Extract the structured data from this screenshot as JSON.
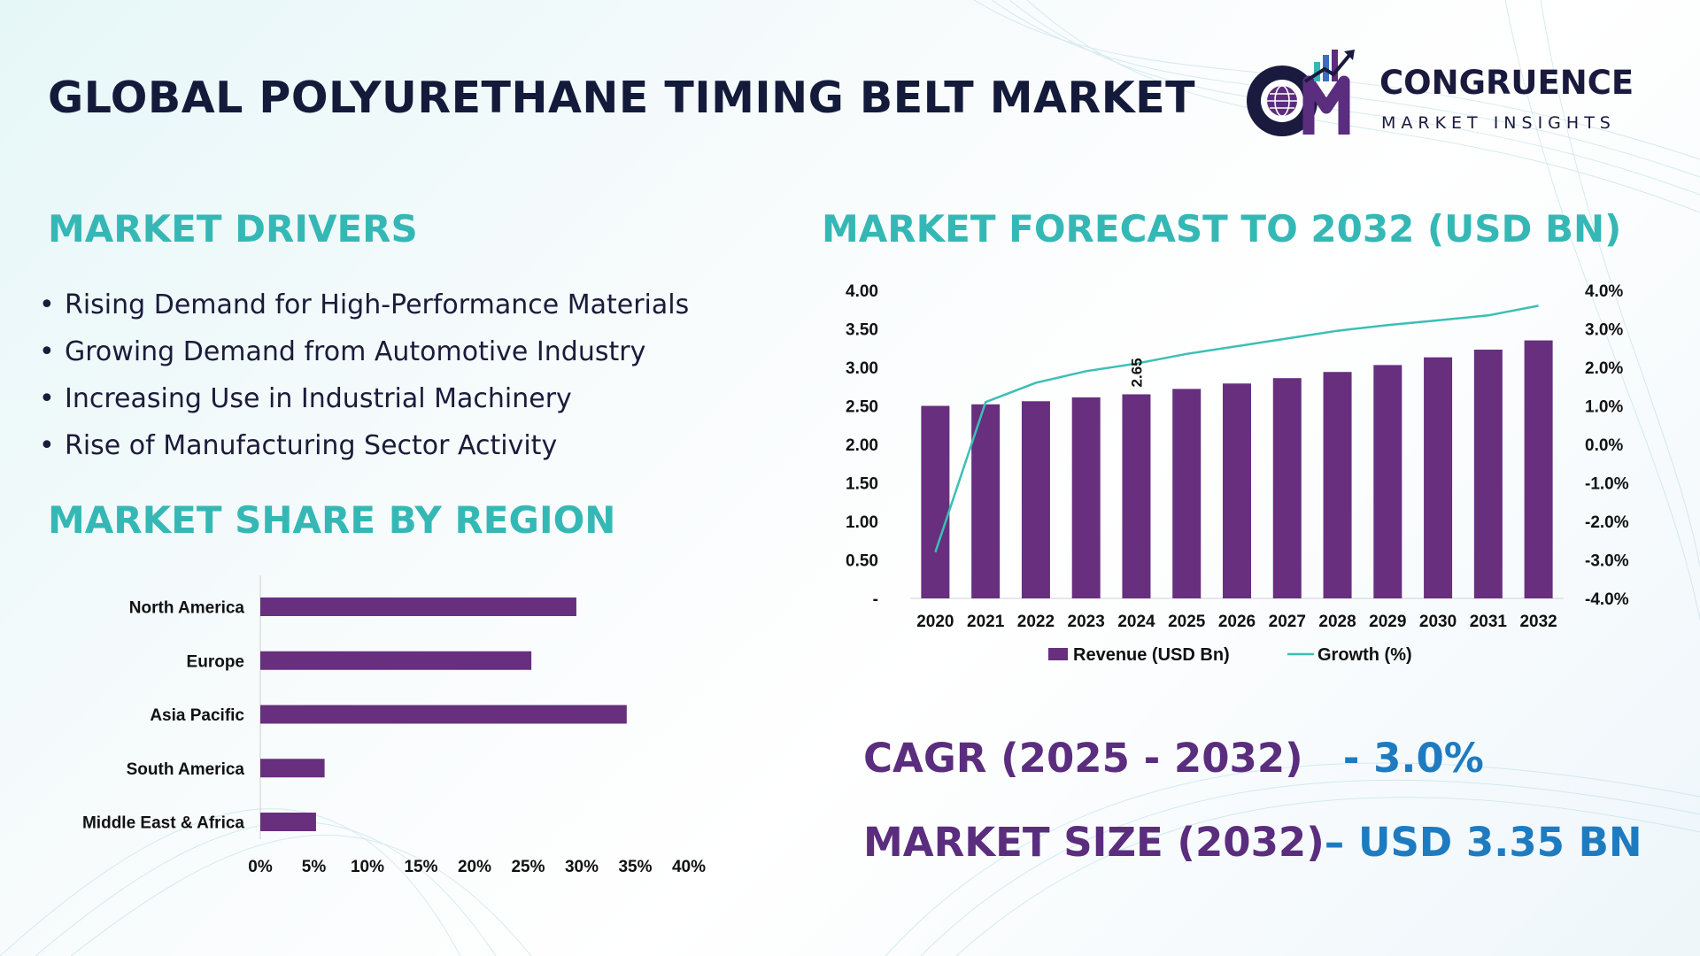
{
  "header": {
    "title": "GLOBAL POLYURETHANE TIMING BELT MARKET",
    "logo": {
      "monogram": "CM",
      "name": "CONGRUENCE",
      "tagline": "MARKET INSIGHTS"
    }
  },
  "colors": {
    "accent": "#35b8b5",
    "bar": "#672f7e",
    "line": "#3cbfb5",
    "kpi_label": "#5b2d7e",
    "kpi_value": "#1f7bc0",
    "title": "#141a3a"
  },
  "drivers": {
    "heading": "MARKET DRIVERS",
    "items": [
      "Rising Demand for High-Performance Materials",
      "Growing Demand from Automotive Industry",
      "Increasing Use in Industrial Machinery",
      "Rise of Manufacturing Sector Activity"
    ]
  },
  "region": {
    "heading": "MARKET SHARE BY REGION"
  },
  "forecast": {
    "heading": "MARKET FORECAST TO 2032 (USD BN)"
  },
  "chart_data": [
    {
      "type": "bar",
      "orientation": "horizontal",
      "categories": [
        "North America",
        "Europe",
        "Asia Pacific",
        "South America",
        "Middle East & Africa"
      ],
      "values": [
        29.5,
        25.3,
        34.2,
        6.0,
        5.2
      ],
      "xlim": [
        0,
        40
      ],
      "xticks": [
        "0%",
        "5%",
        "10%",
        "15%",
        "20%",
        "25%",
        "30%",
        "35%",
        "40%"
      ],
      "grid": false
    },
    {
      "type": "bar",
      "categories": [
        "2020",
        "2021",
        "2022",
        "2023",
        "2024",
        "2025",
        "2026",
        "2027",
        "2028",
        "2029",
        "2030",
        "2031",
        "2032"
      ],
      "series": [
        {
          "name": "Revenue (USD Bn)",
          "type": "bar",
          "axis": "left",
          "values": [
            2.5,
            2.52,
            2.56,
            2.61,
            2.65,
            2.72,
            2.79,
            2.86,
            2.94,
            3.03,
            3.13,
            3.23,
            3.35
          ]
        },
        {
          "name": "Growth (%)",
          "type": "line",
          "axis": "right",
          "values": [
            -2.8,
            1.1,
            1.6,
            1.9,
            2.1,
            2.35,
            2.55,
            2.75,
            2.95,
            3.1,
            3.22,
            3.35,
            3.6
          ]
        }
      ],
      "ylim": [
        0,
        4
      ],
      "yticks": [
        "-",
        "0.50",
        "1.00",
        "1.50",
        "2.00",
        "2.50",
        "3.00",
        "3.50",
        "4.00"
      ],
      "y2lim": [
        -4,
        4
      ],
      "y2ticks": [
        "-4.0%",
        "-3.0%",
        "-2.0%",
        "-1.0%",
        "0.0%",
        "1.0%",
        "2.0%",
        "3.0%",
        "4.0%"
      ],
      "data_labels": [
        {
          "category": "2024",
          "text": "2.65"
        }
      ],
      "legend": "bottom",
      "grid": false
    }
  ],
  "kpis": {
    "cagr_label": "CAGR (2025 - 2032)",
    "cagr_value": "- 3.0%",
    "size_label": "MARKET SIZE (2032)",
    "size_value": "– USD 3.35 BN"
  }
}
